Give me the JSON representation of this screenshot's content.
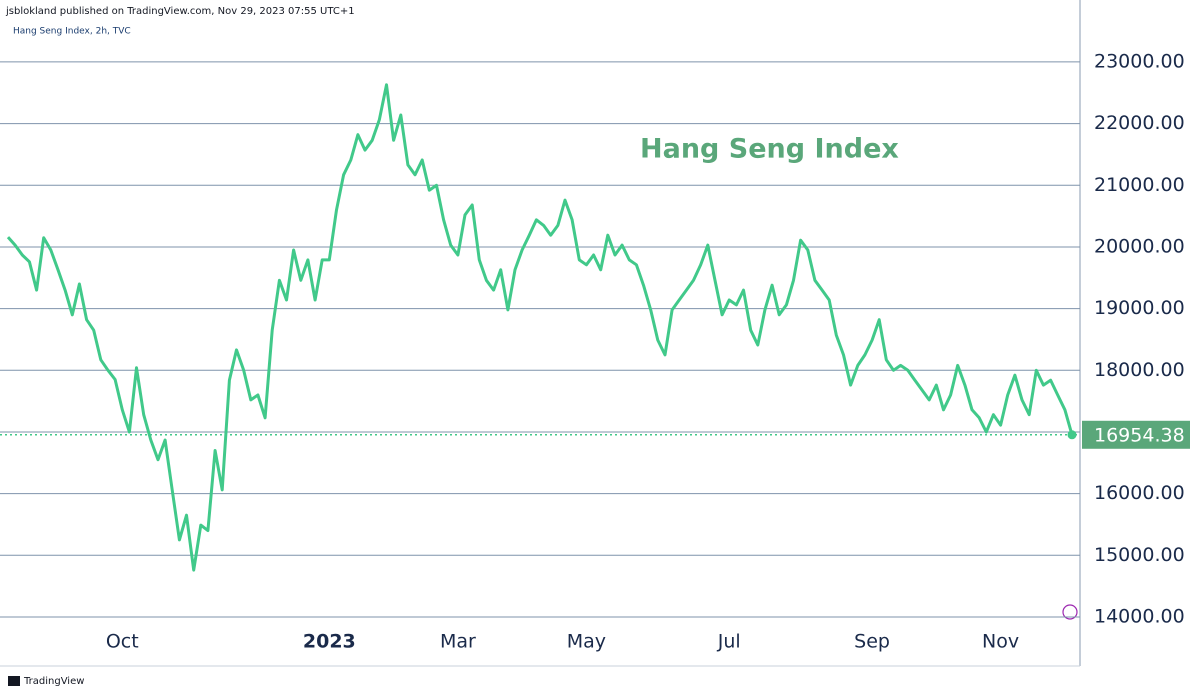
{
  "chart_data": {
    "type": "line",
    "source": "jsblokland published on TradingView.com, Nov 29, 2023 07:55 UTC+1",
    "subtitle": "Hang Seng Index, 2h, TVC",
    "annotation": "Hang Seng Index",
    "footer": "TradingView",
    "color": "#41c98a",
    "grid": true,
    "values": [
      20160,
      20030,
      19870,
      19760,
      19300,
      20150,
      19950,
      19630,
      19300,
      18900,
      19400,
      18820,
      18650,
      18170,
      18000,
      17850,
      17360,
      17000,
      18040,
      17280,
      16870,
      16550,
      16870,
      16060,
      15250,
      15650,
      14760,
      15490,
      15400,
      16700,
      16060,
      17840,
      18330,
      18000,
      17520,
      17600,
      17230,
      18650,
      19460,
      19140,
      19950,
      19460,
      19790,
      19140,
      19790,
      19790,
      20600,
      21170,
      21410,
      21820,
      21570,
      21730,
      22060,
      22630,
      21730,
      22140,
      21330,
      21170,
      21410,
      20920,
      21000,
      20440,
      20030,
      19870,
      20520,
      20680,
      19790,
      19460,
      19300,
      19630,
      18980,
      19630,
      19950,
      20190,
      20440,
      20350,
      20190,
      20350,
      20760,
      20440,
      19790,
      19710,
      19870,
      19630,
      20190,
      19870,
      20030,
      19790,
      19710,
      19380,
      18980,
      18490,
      18250,
      18980,
      19140,
      19300,
      19460,
      19710,
      20030,
      19460,
      18900,
      19140,
      19060,
      19300,
      18650,
      18410,
      18980,
      19380,
      18900,
      19060,
      19460,
      20110,
      19950,
      19460,
      19300,
      19140,
      18570,
      18250,
      17760,
      18080,
      18250,
      18490,
      18820,
      18170,
      18000,
      18080,
      18000,
      17840,
      17680,
      17520,
      17760,
      17360,
      17600,
      18080,
      17760,
      17360,
      17230,
      17000,
      17280,
      17110,
      17600,
      17920,
      17520,
      17280,
      18000,
      17760,
      17840,
      17600,
      17360,
      16954.38
    ],
    "xlim": [
      0,
      149
    ],
    "xticks": [
      {
        "value": 16,
        "label": "Oct"
      },
      {
        "value": 45,
        "label": "2023"
      },
      {
        "value": 63,
        "label": "Mar"
      },
      {
        "value": 81,
        "label": "May"
      },
      {
        "value": 101,
        "label": "Jul"
      },
      {
        "value": 121,
        "label": "Sep"
      },
      {
        "value": 139,
        "label": "Nov"
      }
    ],
    "ylim": [
      13870,
      23680
    ],
    "yticks": [
      {
        "value": 14000,
        "label": "14000.00"
      },
      {
        "value": 15000,
        "label": "15000.00"
      },
      {
        "value": 16000,
        "label": "16000.00"
      },
      {
        "value": 17000,
        "label": "17000.00"
      },
      {
        "value": 18000,
        "label": "18000.00"
      },
      {
        "value": 19000,
        "label": "19000.00"
      },
      {
        "value": 20000,
        "label": "20000.00"
      },
      {
        "value": 21000,
        "label": "21000.00"
      },
      {
        "value": 22000,
        "label": "22000.00"
      },
      {
        "value": 23000,
        "label": "23000.00"
      }
    ]
  }
}
